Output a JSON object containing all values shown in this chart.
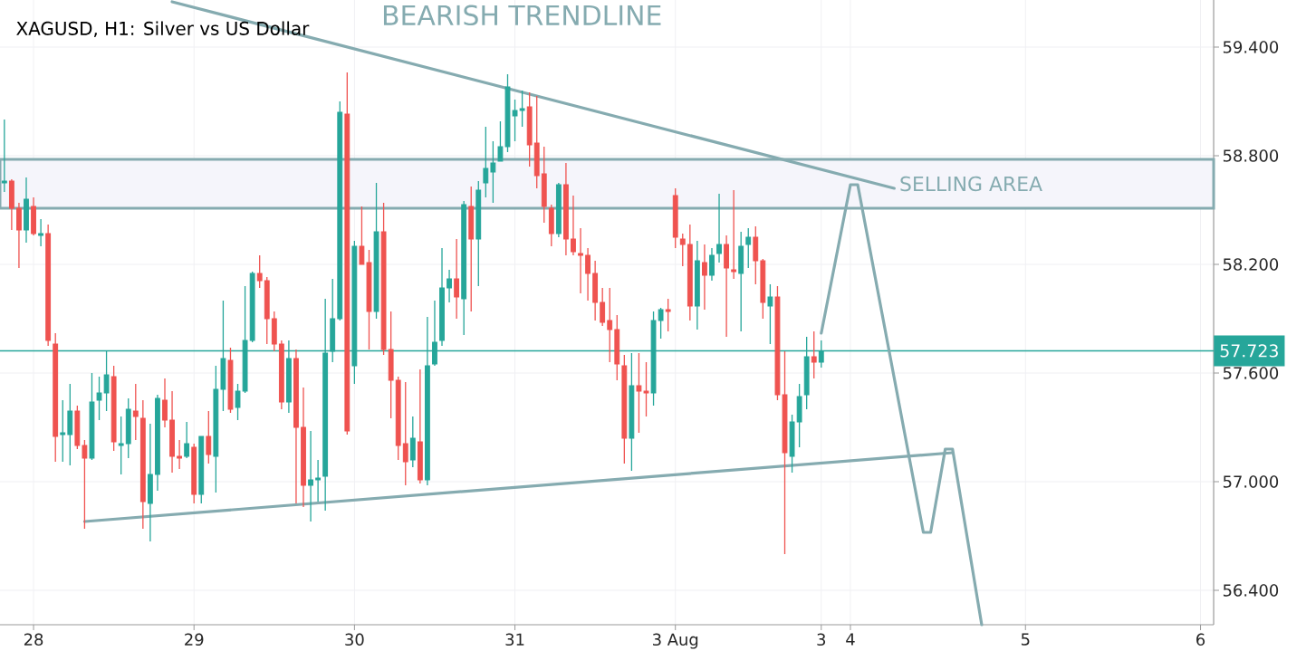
{
  "chart_data": {
    "type": "candlestick",
    "title": "XAGUSD, H1: Silver vs US Dollar",
    "categories": [
      null,
      null,
      null,
      null,
      "28",
      null,
      null,
      null,
      null,
      null,
      null,
      null,
      null,
      null,
      null,
      null,
      null,
      null,
      null,
      null,
      null,
      null,
      null,
      null,
      null,
      null,
      "29",
      null,
      null,
      null,
      null,
      null,
      null,
      null,
      null,
      null,
      null,
      null,
      null,
      null,
      null,
      null,
      null,
      null,
      null,
      null,
      null,
      null,
      "30",
      null,
      null,
      null,
      null,
      null,
      null,
      null,
      null,
      null,
      null,
      null,
      null,
      null,
      null,
      null,
      null,
      null,
      null,
      null,
      null,
      null,
      "31",
      null,
      null,
      null,
      null,
      null,
      null,
      null,
      null,
      null,
      null,
      null,
      null,
      null,
      null,
      null,
      null,
      null,
      null,
      null,
      null,
      null,
      "3 Aug",
      null,
      null,
      null,
      null,
      null,
      null,
      null,
      null,
      null,
      null,
      null,
      null,
      null,
      null,
      null,
      null,
      null,
      null,
      null,
      "3",
      null,
      null,
      null,
      "4",
      null,
      null,
      null,
      null,
      null,
      null,
      null,
      null,
      null,
      null,
      null,
      null,
      null,
      null,
      null,
      null,
      null,
      null,
      null,
      null,
      null,
      null,
      null,
      "5",
      null,
      null,
      null,
      null,
      null,
      null,
      null,
      null,
      null,
      null,
      null,
      null,
      null,
      null,
      null,
      null,
      null,
      null,
      null,
      null,
      null,
      null,
      null,
      "6"
    ],
    "ohlc": [
      [
        58.65,
        59.0,
        58.6,
        58.66
      ],
      [
        58.66,
        58.67,
        58.39,
        58.51
      ],
      [
        58.51,
        58.54,
        58.18,
        58.39
      ],
      [
        58.39,
        58.68,
        58.32,
        58.56
      ],
      [
        58.52,
        58.57,
        58.36,
        58.37
      ],
      [
        58.36,
        58.45,
        58.3,
        58.37
      ],
      [
        58.37,
        58.42,
        57.75,
        57.78
      ],
      [
        57.76,
        57.82,
        57.11,
        57.25
      ],
      [
        57.26,
        57.45,
        57.11,
        57.27
      ],
      [
        57.26,
        57.54,
        57.09,
        57.39
      ],
      [
        57.39,
        57.42,
        57.18,
        57.2
      ],
      [
        57.2,
        57.23,
        56.74,
        57.13
      ],
      [
        57.13,
        57.6,
        57.12,
        57.44
      ],
      [
        57.45,
        57.58,
        57.34,
        57.49
      ],
      [
        57.49,
        57.72,
        57.39,
        57.59
      ],
      [
        57.58,
        57.64,
        57.17,
        57.22
      ],
      [
        57.2,
        57.36,
        57.04,
        57.21
      ],
      [
        57.21,
        57.46,
        57.13,
        57.4
      ],
      [
        57.39,
        57.54,
        57.23,
        57.36
      ],
      [
        57.35,
        57.45,
        56.74,
        56.89
      ],
      [
        56.88,
        57.32,
        56.67,
        57.04
      ],
      [
        57.04,
        57.48,
        56.95,
        57.46
      ],
      [
        57.45,
        57.57,
        57.3,
        57.34
      ],
      [
        57.34,
        57.5,
        57.05,
        57.14
      ],
      [
        57.14,
        57.23,
        57.07,
        57.13
      ],
      [
        57.14,
        57.33,
        57.13,
        57.21
      ],
      [
        57.19,
        57.21,
        56.88,
        56.93
      ],
      [
        56.93,
        57.25,
        56.88,
        57.25
      ],
      [
        57.25,
        57.39,
        57.1,
        57.15
      ],
      [
        57.14,
        57.64,
        56.94,
        57.51
      ],
      [
        57.51,
        58.0,
        57.39,
        57.68
      ],
      [
        57.67,
        57.74,
        57.38,
        57.4
      ],
      [
        57.41,
        57.54,
        57.34,
        57.5
      ],
      [
        57.5,
        58.08,
        57.49,
        57.78
      ],
      [
        57.78,
        58.16,
        57.77,
        58.15
      ],
      [
        58.15,
        58.25,
        58.07,
        58.11
      ],
      [
        58.11,
        58.13,
        57.76,
        57.9
      ],
      [
        57.9,
        57.94,
        57.72,
        57.76
      ],
      [
        57.76,
        57.78,
        57.4,
        57.44
      ],
      [
        57.44,
        57.78,
        57.38,
        57.68
      ],
      [
        57.68,
        57.73,
        56.88,
        57.3
      ],
      [
        57.3,
        57.52,
        56.86,
        56.98
      ],
      [
        56.98,
        57.28,
        56.78,
        57.01
      ],
      [
        57.01,
        57.12,
        56.89,
        57.02
      ],
      [
        57.03,
        58.01,
        56.84,
        57.71
      ],
      [
        57.72,
        58.12,
        57.66,
        57.9
      ],
      [
        57.9,
        59.1,
        57.89,
        59.04
      ],
      [
        59.03,
        59.26,
        57.26,
        57.28
      ],
      [
        57.64,
        58.33,
        57.54,
        58.3
      ],
      [
        58.3,
        58.52,
        58.2,
        58.2
      ],
      [
        58.21,
        58.28,
        57.73,
        57.94
      ],
      [
        57.94,
        58.65,
        57.9,
        58.38
      ],
      [
        58.38,
        58.54,
        57.7,
        57.73
      ],
      [
        57.73,
        57.94,
        57.35,
        57.56
      ],
      [
        57.56,
        57.58,
        57.12,
        57.2
      ],
      [
        57.21,
        57.55,
        56.98,
        57.11
      ],
      [
        57.12,
        57.36,
        57.08,
        57.24
      ],
      [
        57.22,
        57.62,
        56.99,
        57.01
      ],
      [
        57.01,
        57.91,
        56.98,
        57.64
      ],
      [
        57.65,
        58.0,
        57.64,
        57.77
      ],
      [
        57.78,
        58.29,
        57.75,
        58.07
      ],
      [
        58.07,
        58.17,
        57.99,
        58.12
      ],
      [
        58.12,
        58.34,
        57.9,
        58.02
      ],
      [
        58.01,
        58.55,
        57.81,
        58.53
      ],
      [
        58.52,
        58.63,
        57.94,
        58.34
      ],
      [
        58.34,
        58.66,
        58.08,
        58.61
      ],
      [
        58.65,
        58.96,
        58.57,
        58.73
      ],
      [
        58.71,
        58.88,
        58.54,
        58.76
      ],
      [
        58.77,
        58.99,
        58.77,
        58.85
      ],
      [
        58.85,
        59.25,
        58.82,
        59.18
      ],
      [
        59.02,
        59.11,
        58.88,
        59.05
      ],
      [
        59.05,
        59.16,
        58.96,
        59.06
      ],
      [
        59.07,
        59.15,
        58.74,
        58.86
      ],
      [
        58.87,
        59.13,
        58.62,
        58.69
      ],
      [
        58.7,
        58.85,
        58.43,
        58.52
      ],
      [
        58.51,
        58.53,
        58.3,
        58.37
      ],
      [
        58.37,
        58.65,
        58.35,
        58.64
      ],
      [
        58.64,
        58.76,
        58.25,
        58.34
      ],
      [
        58.34,
        58.58,
        58.25,
        58.27
      ],
      [
        58.26,
        58.4,
        58.04,
        58.25
      ],
      [
        58.25,
        58.29,
        58.0,
        58.15
      ],
      [
        58.15,
        58.22,
        57.89,
        57.99
      ],
      [
        57.99,
        58.07,
        57.86,
        57.88
      ],
      [
        57.89,
        58.07,
        57.66,
        57.84
      ],
      [
        57.84,
        57.92,
        57.56,
        57.65
      ],
      [
        57.64,
        57.7,
        57.1,
        57.24
      ],
      [
        57.24,
        57.71,
        57.06,
        57.53
      ],
      [
        57.53,
        57.71,
        57.27,
        57.5
      ],
      [
        57.5,
        57.66,
        57.36,
        57.49
      ],
      [
        57.49,
        57.94,
        57.42,
        57.89
      ],
      [
        57.89,
        57.96,
        57.79,
        57.95
      ],
      [
        57.95,
        58.01,
        57.83,
        57.94
      ],
      [
        58.58,
        58.62,
        58.29,
        58.35
      ],
      [
        58.34,
        58.37,
        58.19,
        58.31
      ],
      [
        58.31,
        58.42,
        57.89,
        57.97
      ],
      [
        57.97,
        58.33,
        57.84,
        58.22
      ],
      [
        58.21,
        58.31,
        57.95,
        58.14
      ],
      [
        58.14,
        58.29,
        58.11,
        58.25
      ],
      [
        58.26,
        58.59,
        58.21,
        58.31
      ],
      [
        58.31,
        58.36,
        57.8,
        58.18
      ],
      [
        58.17,
        58.61,
        58.12,
        58.16
      ],
      [
        58.15,
        58.38,
        57.83,
        58.3
      ],
      [
        58.31,
        58.4,
        58.18,
        58.35
      ],
      [
        58.35,
        58.41,
        58.09,
        58.22
      ],
      [
        58.22,
        58.23,
        57.9,
        57.99
      ],
      [
        57.97,
        58.09,
        57.76,
        58.02
      ],
      [
        58.02,
        58.08,
        57.45,
        57.48
      ],
      [
        57.48,
        57.72,
        56.6,
        57.16
      ],
      [
        57.14,
        57.37,
        57.05,
        57.33
      ],
      [
        57.33,
        57.54,
        57.19,
        57.47
      ],
      [
        57.48,
        57.8,
        57.4,
        57.69
      ],
      [
        57.69,
        57.83,
        57.57,
        57.66
      ],
      [
        57.66,
        57.78,
        57.63,
        57.72
      ],
      null,
      null,
      null,
      null,
      null,
      null,
      null,
      null,
      null,
      null,
      null,
      null,
      null,
      null,
      null,
      null,
      null,
      null,
      null,
      null,
      null,
      null,
      null,
      null,
      null,
      null,
      null,
      null,
      null,
      null,
      null,
      null,
      null,
      null,
      null,
      null,
      null,
      null,
      null,
      null,
      null,
      null,
      null,
      null,
      null,
      null,
      null,
      null,
      null,
      null,
      null,
      null
    ],
    "colors": [
      "#26a69a",
      "#ef5350",
      "#ef5350",
      "#26a69a",
      "#ef5350",
      "#26a69a",
      "#ef5350",
      "#ef5350",
      "#26a69a",
      "#26a69a",
      "#ef5350",
      "#ef5350",
      "#26a69a",
      "#26a69a",
      "#26a69a",
      "#ef5350",
      "#26a69a",
      "#26a69a",
      "#ef5350",
      "#ef5350",
      "#26a69a",
      "#26a69a",
      "#ef5350",
      "#ef5350",
      "#ef5350",
      "#26a69a",
      "#ef5350",
      "#26a69a",
      "#ef5350",
      "#26a69a",
      "#26a69a",
      "#ef5350",
      "#26a69a",
      "#26a69a",
      "#26a69a",
      "#ef5350",
      "#ef5350",
      "#ef5350",
      "#ef5350",
      "#26a69a",
      "#ef5350",
      "#ef5350",
      "#26a69a",
      "#26a69a",
      "#26a69a",
      "#26a69a",
      "#26a69a",
      "#ef5350",
      "#26a69a",
      "#ef5350",
      "#ef5350",
      "#26a69a",
      "#ef5350",
      "#ef5350",
      "#ef5350",
      "#ef5350",
      "#26a69a",
      "#ef5350",
      "#26a69a",
      "#26a69a",
      "#26a69a",
      "#26a69a",
      "#ef5350",
      "#26a69a",
      "#ef5350",
      "#26a69a",
      "#26a69a",
      "#26a69a",
      "#26a69a",
      "#26a69a",
      "#26a69a",
      "#26a69a",
      "#ef5350",
      "#ef5350",
      "#ef5350",
      "#ef5350",
      "#26a69a",
      "#ef5350",
      "#ef5350",
      "#ef5350",
      "#ef5350",
      "#ef5350",
      "#ef5350",
      "#ef5350",
      "#ef5350",
      "#ef5350",
      "#26a69a",
      "#ef5350",
      "#ef5350",
      "#26a69a",
      "#26a69a",
      "#ef5350",
      "#ef5350",
      "#ef5350",
      "#ef5350",
      "#26a69a",
      "#ef5350",
      "#26a69a",
      "#26a69a",
      "#ef5350",
      "#ef5350",
      "#26a69a",
      "#26a69a",
      "#ef5350",
      "#ef5350",
      "#26a69a",
      "#ef5350",
      "#ef5350",
      "#26a69a",
      "#26a69a",
      "#26a69a",
      "#ef5350",
      "#26a69a",
      null,
      null,
      null,
      null,
      null,
      null,
      null,
      null,
      null,
      null,
      null,
      null,
      null,
      null,
      null,
      null,
      null,
      null,
      null,
      null,
      null,
      null,
      null,
      null,
      null,
      null,
      null,
      null,
      null,
      null,
      null,
      null,
      null,
      null,
      null,
      null,
      null,
      null,
      null,
      null,
      null,
      null,
      null,
      null,
      null,
      null,
      null,
      null,
      null,
      null,
      null,
      null
    ],
    "series": [
      {
        "type": "line",
        "color": "#85abb0",
        "values": [
          null,
          null,
          null,
          null,
          null,
          null,
          null,
          null,
          null,
          null,
          null,
          null,
          null,
          null,
          null,
          null,
          null,
          null,
          null,
          null,
          null,
          null,
          null,
          59.65,
          null,
          null,
          null,
          null,
          null,
          null,
          null,
          null,
          null,
          null,
          null,
          null,
          null,
          null,
          null,
          null,
          null,
          null,
          null,
          null,
          null,
          null,
          null,
          null,
          null,
          null,
          null,
          null,
          null,
          null,
          null,
          null,
          null,
          null,
          null,
          null,
          null,
          null,
          null,
          null,
          null,
          null,
          null,
          null,
          null,
          null,
          null,
          null,
          null,
          null,
          null,
          null,
          null,
          null,
          null,
          null,
          null,
          null,
          null,
          null,
          null,
          null,
          null,
          null,
          null,
          null,
          null,
          null,
          null,
          null,
          null,
          null,
          null,
          null,
          null,
          null,
          null,
          null,
          null,
          null,
          null,
          null,
          null,
          null,
          null,
          null,
          null,
          null,
          null,
          null,
          null,
          null,
          null,
          null,
          null,
          null,
          null,
          null,
          58.62,
          null,
          null,
          null,
          null,
          null,
          null,
          null,
          null,
          null,
          null,
          null,
          null,
          null,
          null,
          null,
          null,
          null,
          null,
          null,
          null,
          null,
          null,
          null,
          null,
          null,
          null,
          null,
          null,
          null,
          null,
          null,
          null,
          null,
          null,
          null,
          null,
          null,
          null,
          null,
          null,
          null,
          null
        ]
      },
      {
        "type": "line",
        "color": "#85abb0",
        "values": [
          null,
          null,
          null,
          null,
          null,
          null,
          null,
          null,
          null,
          null,
          null,
          56.78,
          null,
          null,
          null,
          null,
          null,
          null,
          null,
          null,
          null,
          null,
          null,
          null,
          null,
          null,
          null,
          null,
          null,
          null,
          null,
          null,
          null,
          null,
          null,
          null,
          null,
          null,
          null,
          null,
          null,
          null,
          null,
          null,
          null,
          null,
          null,
          null,
          null,
          null,
          null,
          null,
          null,
          null,
          null,
          null,
          null,
          null,
          null,
          null,
          null,
          null,
          null,
          null,
          null,
          null,
          null,
          null,
          null,
          null,
          null,
          null,
          null,
          null,
          null,
          null,
          null,
          null,
          null,
          null,
          null,
          null,
          null,
          null,
          null,
          null,
          null,
          null,
          null,
          null,
          null,
          null,
          null,
          null,
          null,
          null,
          null,
          null,
          null,
          null,
          null,
          null,
          null,
          null,
          null,
          null,
          null,
          null,
          null,
          null,
          null,
          null,
          null,
          null,
          null,
          null,
          null,
          null,
          null,
          null,
          null,
          null,
          null,
          null,
          null,
          null,
          null,
          null,
          null,
          null,
          57.16,
          null,
          null,
          null,
          null,
          null,
          null,
          null,
          null,
          null,
          null,
          null,
          null,
          null,
          null,
          null,
          null,
          null,
          null,
          null,
          null,
          null,
          null,
          null,
          null,
          null,
          null,
          null,
          null,
          null,
          null,
          null,
          null,
          null,
          null
        ]
      },
      {
        "type": "line",
        "color": "#85abb0",
        "values": [
          null,
          null,
          null,
          null,
          null,
          null,
          null,
          null,
          null,
          null,
          null,
          null,
          null,
          null,
          null,
          null,
          null,
          null,
          null,
          null,
          null,
          null,
          null,
          null,
          null,
          null,
          null,
          null,
          null,
          null,
          null,
          null,
          null,
          null,
          null,
          null,
          null,
          null,
          null,
          null,
          null,
          null,
          null,
          null,
          null,
          null,
          null,
          null,
          null,
          null,
          null,
          null,
          null,
          null,
          null,
          null,
          null,
          null,
          null,
          null,
          null,
          null,
          null,
          null,
          null,
          null,
          null,
          null,
          null,
          null,
          null,
          null,
          null,
          null,
          null,
          null,
          null,
          null,
          null,
          null,
          null,
          null,
          null,
          null,
          null,
          null,
          null,
          null,
          null,
          null,
          null,
          null,
          null,
          null,
          null,
          null,
          null,
          null,
          null,
          null,
          null,
          null,
          null,
          null,
          null,
          null,
          null,
          null,
          null,
          null,
          null,
          null,
          57.82,
          null,
          null,
          null,
          58.64,
          58.64,
          null,
          null,
          null,
          null,
          null,
          null,
          null,
          null,
          56.72,
          56.72,
          null,
          57.18,
          57.18,
          null,
          null,
          null,
          56.21,
          null,
          null,
          null,
          null,
          null,
          null,
          null,
          null,
          null,
          null,
          null,
          null,
          null,
          null,
          null,
          null,
          null,
          null,
          null,
          null,
          null,
          null,
          null,
          null,
          null,
          null,
          null,
          null,
          null,
          null
        ]
      }
    ],
    "ylim": [
      56.21,
      59.66
    ],
    "yticks": [
      {
        "value": 56.4,
        "label": "56.400"
      },
      {
        "value": 57.0,
        "label": "57.000"
      },
      {
        "value": 57.6,
        "label": "57.600"
      },
      {
        "value": 58.2,
        "label": "58.200"
      },
      {
        "value": 58.8,
        "label": "58.800"
      },
      {
        "value": 59.4,
        "label": "59.400"
      }
    ],
    "grid": true,
    "ref_lines": [
      {
        "axis": "y",
        "value": 57.723,
        "label": "57.723",
        "color": "#26a69a"
      }
    ],
    "bands": [
      {
        "axis": "y",
        "from": 58.51,
        "to": 58.78,
        "label": "SELLING AREA",
        "color": "#f5f5fb"
      }
    ],
    "annotations": [
      "BEARISH TRENDLINE"
    ]
  }
}
